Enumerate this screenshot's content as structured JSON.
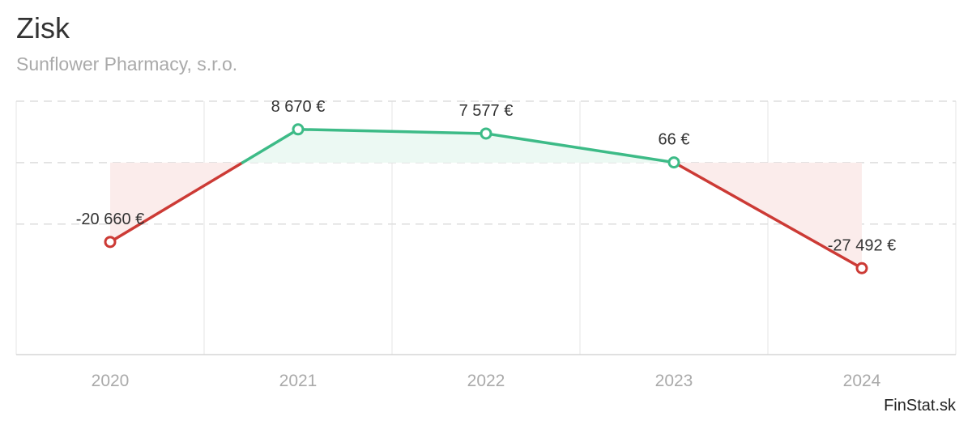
{
  "title": "Zisk",
  "subtitle": "Sunflower Pharmacy, s.r.o.",
  "credit": "FinStat.sk",
  "colors": {
    "positive": "#3dbb87",
    "negative": "#cc3a35",
    "positive_fill": "#ecf9f3",
    "negative_fill": "#fbeceb",
    "grid": "#dddddd"
  },
  "chart_data": {
    "type": "line",
    "title": "Zisk",
    "subtitle": "Sunflower Pharmacy, s.r.o.",
    "xlabel": "",
    "ylabel": "",
    "categories": [
      "2020",
      "2021",
      "2022",
      "2023",
      "2024"
    ],
    "series": [
      {
        "name": "Zisk",
        "values": [
          -20660,
          8670,
          7577,
          66,
          -27492
        ],
        "labels": [
          "-20 660 €",
          "8 670 €",
          "7 577 €",
          "66 €",
          "-27 492 €"
        ]
      }
    ],
    "ylim": [
      -50000,
      16000
    ],
    "grid": true,
    "legend": "none"
  }
}
